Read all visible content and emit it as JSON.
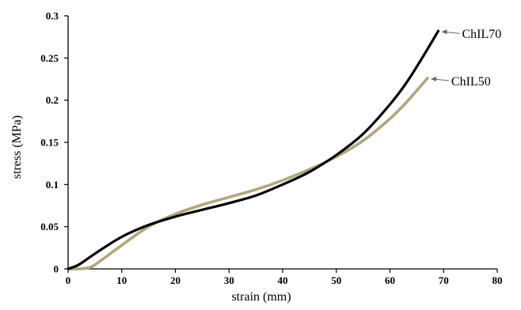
{
  "chart_data": {
    "type": "line",
    "title": "",
    "xlabel": "strain (mm)",
    "ylabel": "stress (MPa)",
    "xlim": [
      0,
      80
    ],
    "ylim": [
      0,
      0.3
    ],
    "xticks": [
      "0",
      "10",
      "20",
      "30",
      "40",
      "50",
      "60",
      "70",
      "80"
    ],
    "yticks": [
      "0",
      "0.05",
      "0.1",
      "0.15",
      "0.2",
      "0.25",
      "0.3"
    ],
    "grid": false,
    "legend": "none",
    "series": [
      {
        "name": "ChIL70",
        "color": "#000000",
        "x": [
          0,
          2,
          5,
          10,
          15,
          20,
          25,
          30,
          35,
          40,
          45,
          50,
          55,
          60,
          63,
          66,
          69
        ],
        "y": [
          0,
          0.005,
          0.018,
          0.038,
          0.052,
          0.062,
          0.07,
          0.078,
          0.087,
          0.1,
          0.115,
          0.135,
          0.16,
          0.195,
          0.22,
          0.25,
          0.282
        ]
      },
      {
        "name": "ChIL50",
        "color": "#b1a67e",
        "x": [
          0,
          2,
          3.5,
          5,
          10,
          15,
          20,
          25,
          30,
          35,
          40,
          45,
          50,
          55,
          60,
          63,
          67
        ],
        "y": [
          0,
          0,
          0.001,
          0.005,
          0.028,
          0.05,
          0.065,
          0.076,
          0.085,
          0.094,
          0.105,
          0.118,
          0.133,
          0.152,
          0.178,
          0.197,
          0.226
        ]
      }
    ],
    "annotations": [
      {
        "text": "ChIL70",
        "x": 69,
        "y": 0.282
      },
      {
        "text": "ChIL50",
        "x": 67,
        "y": 0.226
      }
    ]
  }
}
